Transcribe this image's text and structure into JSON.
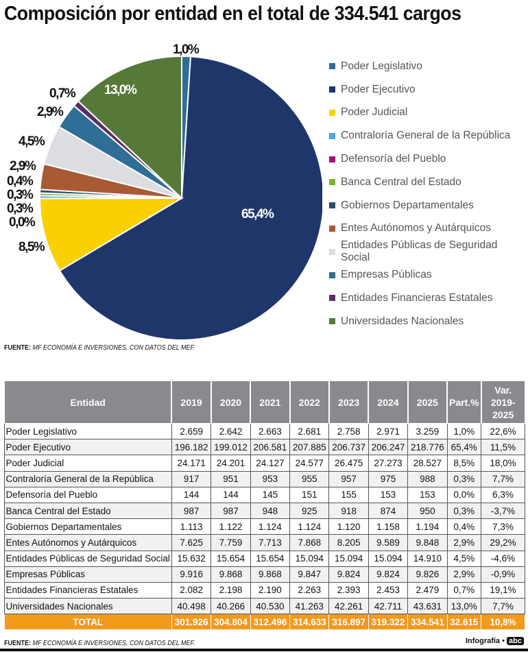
{
  "title": "Composición por entidad en el total de 334.541 cargos",
  "source_label": "FUENTE:",
  "source_text": "MF ECONOMÍA E INVERSIONES, CON DATOS DEL MEF.",
  "credit": "Infografía •",
  "credit_logo": "abc",
  "chart_data": {
    "type": "pie",
    "title": "Composición por entidad en el total de 334.541 cargos",
    "legend_position": "right",
    "slices": [
      {
        "name": "Poder Legislativo",
        "value": 1.0,
        "label": "1,0%",
        "color": "#2e6e96"
      },
      {
        "name": "Poder Ejecutivo",
        "value": 65.4,
        "label": "65,4%",
        "color": "#1f366b"
      },
      {
        "name": "Poder Judicial",
        "value": 8.5,
        "label": "8,5%",
        "color": "#fbd000"
      },
      {
        "name": "Contraloría General de la República",
        "value": 0.3,
        "label": "0,3%",
        "color": "#4aa8de"
      },
      {
        "name": "Defensoría del Pueblo",
        "value": 0.0,
        "label": "0,0%",
        "color": "#a0117a"
      },
      {
        "name": "Banca Central del Estado",
        "value": 0.3,
        "label": "0,3%",
        "color": "#7ab42e"
      },
      {
        "name": "Gobiernos Departamentales",
        "value": 0.4,
        "label": "0,4%",
        "color": "#2f4a66"
      },
      {
        "name": "Entes Autónomos y Autárquicos",
        "value": 2.9,
        "label": "2,9%",
        "color": "#a85a35"
      },
      {
        "name": "Entidades Públicas de Seguridad Social",
        "value": 4.5,
        "label": "4,5%",
        "color": "#dcdde1"
      },
      {
        "name": "Empresas Públicas",
        "value": 2.9,
        "label": "2,9%",
        "color": "#2f6e96"
      },
      {
        "name": "Entidades Financieras Estatales",
        "value": 0.7,
        "label": "0,7%",
        "color": "#5c2e62"
      },
      {
        "name": "Universidades Nacionales",
        "value": 13.0,
        "label": "13,0%",
        "color": "#56793a"
      }
    ]
  },
  "table": {
    "headers": [
      "Entidad",
      "2019",
      "2020",
      "2021",
      "2022",
      "2023",
      "2024",
      "2025",
      "Part.%",
      "Var. 2019-2025"
    ],
    "rows": [
      [
        "Poder Legislativo",
        "2.659",
        "2.642",
        "2.663",
        "2.681",
        "2.758",
        "2.971",
        "3.259",
        "1,0%",
        "22,6%"
      ],
      [
        "Poder Ejecutivo",
        "196.182",
        "199.012",
        "206.581",
        "207.885",
        "206.737",
        "206.247",
        "218.776",
        "65,4%",
        "11,5%"
      ],
      [
        "Poder Judicial",
        "24.171",
        "24.201",
        "24.127",
        "24.577",
        "26.475",
        "27.273",
        "28.527",
        "8,5%",
        "18,0%"
      ],
      [
        "Contraloría General de la República",
        "917",
        "951",
        "953",
        "955",
        "957",
        "975",
        "988",
        "0,3%",
        "7,7%"
      ],
      [
        "Defensoría del Pueblo",
        "144",
        "144",
        "145",
        "151",
        "155",
        "153",
        "153",
        "0,0%",
        "6,3%"
      ],
      [
        "Banca Central del Estado",
        "987",
        "987",
        "948",
        "925",
        "918",
        "874",
        "950",
        "0,3%",
        "-3,7%"
      ],
      [
        "Gobiernos Departamentales",
        "1.113",
        "1.122",
        "1.124",
        "1.124",
        "1.120",
        "1.158",
        "1.194",
        "0,4%",
        "7,3%"
      ],
      [
        "Entes Autónomos y Autárquicos",
        "7.625",
        "7.759",
        "7.713",
        "7.868",
        "8.205",
        "9.589",
        "9.848",
        "2,9%",
        "29,2%"
      ],
      [
        "Entidades Públicas de Seguridad Social",
        "15.632",
        "15.654",
        "15.654",
        "15.094",
        "15.094",
        "15.094",
        "14.910",
        "4,5%",
        "-4,6%"
      ],
      [
        "Empresas Públicas",
        "9.916",
        "9.868",
        "9.868",
        "9.847",
        "9.824",
        "9.824",
        "9.826",
        "2,9%",
        "-0,9%"
      ],
      [
        "Entidades Financieras Estatales",
        "2.082",
        "2.198",
        "2.190",
        "2.263",
        "2.393",
        "2.453",
        "2.479",
        "0,7%",
        "19,1%"
      ],
      [
        "Universidades Nacionales",
        "40.498",
        "40.266",
        "40.530",
        "41.263",
        "42.261",
        "42.711",
        "43.631",
        "13,0%",
        "7,7%"
      ]
    ],
    "total": [
      "TOTAL",
      "301.926",
      "304.804",
      "312.496",
      "314.633",
      "316.897",
      "319.322",
      "334.541",
      "32.615",
      "10,8%"
    ],
    "total_color": "#f29a1c"
  }
}
